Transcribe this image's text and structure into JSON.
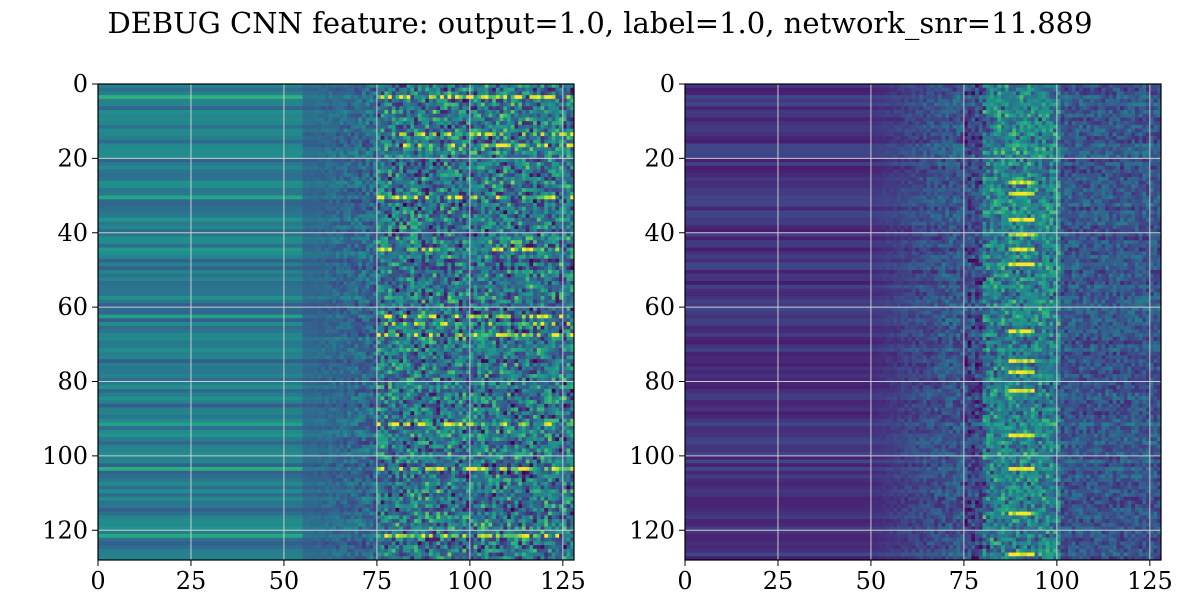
{
  "figure": {
    "title": "DEBUG CNN feature: output=1.0, label=1.0, network_snr=11.889"
  },
  "chart_data": [
    {
      "type": "heatmap",
      "title": "",
      "xlabel": "",
      "ylabel": "",
      "colormap": "viridis",
      "xlim": [
        0,
        128
      ],
      "ylim": [
        128,
        0
      ],
      "xticks": [
        0,
        25,
        50,
        75,
        100,
        125
      ],
      "yticks": [
        0,
        20,
        40,
        60,
        80,
        100,
        120
      ],
      "grid": true,
      "rows": 128,
      "cols": 128,
      "hotspot_column_range": [
        75,
        128
      ],
      "bright_rows": [
        3,
        13,
        16,
        30,
        44,
        62,
        64,
        67,
        91,
        103,
        121
      ]
    },
    {
      "type": "heatmap",
      "title": "",
      "xlabel": "",
      "ylabel": "",
      "colormap": "viridis",
      "xlim": [
        0,
        128
      ],
      "ylim": [
        128,
        0
      ],
      "xticks": [
        0,
        25,
        50,
        75,
        100,
        125
      ],
      "yticks": [
        0,
        20,
        40,
        60,
        80,
        100,
        120
      ],
      "grid": true,
      "rows": 128,
      "cols": 128,
      "hotspot_column_range": [
        80,
        100
      ],
      "bright_rows": [
        26,
        29,
        36,
        40,
        44,
        48,
        66,
        74,
        77,
        82,
        94,
        103,
        115,
        126
      ]
    }
  ]
}
